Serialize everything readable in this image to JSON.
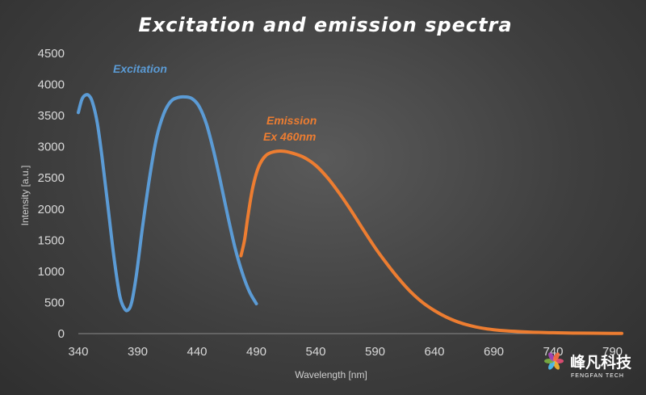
{
  "chart_data": {
    "type": "line",
    "title": "Excitation and emission spectra",
    "xlabel": "Wavelength [nm]",
    "ylabel": "Intensity [a.u.]",
    "xlim": [
      340,
      805
    ],
    "ylim": [
      0,
      4500
    ],
    "xticks": [
      340,
      390,
      440,
      490,
      540,
      590,
      640,
      690,
      740,
      790
    ],
    "yticks": [
      0,
      500,
      1000,
      1500,
      2000,
      2500,
      3000,
      3500,
      4000,
      4500
    ],
    "grid": false,
    "series": [
      {
        "name": "Excitation",
        "color": "#5b9bd5",
        "x": [
          340,
          343,
          346,
          349,
          352,
          356,
          360,
          365,
          370,
          375,
          379,
          382,
          385,
          389,
          394,
          400,
          406,
          412,
          418,
          424,
          430,
          436,
          442,
          448,
          454,
          460,
          466,
          472,
          478,
          484,
          490
        ],
        "y": [
          3550,
          3760,
          3830,
          3820,
          3710,
          3380,
          2830,
          2030,
          1230,
          600,
          400,
          380,
          510,
          950,
          1700,
          2500,
          3150,
          3530,
          3730,
          3790,
          3800,
          3770,
          3640,
          3360,
          2930,
          2420,
          1880,
          1380,
          980,
          680,
          480
        ]
      },
      {
        "name": "Emission",
        "color": "#ed7d31",
        "x": [
          477,
          480,
          483,
          487,
          492,
          498,
          505,
          512,
          520,
          530,
          540,
          550,
          560,
          570,
          580,
          590,
          600,
          610,
          620,
          630,
          640,
          650,
          660,
          670,
          680,
          690,
          700,
          720,
          740,
          760,
          790,
          805
        ],
        "y": [
          1250,
          1500,
          1900,
          2350,
          2680,
          2860,
          2920,
          2930,
          2900,
          2830,
          2700,
          2500,
          2250,
          1970,
          1670,
          1380,
          1120,
          880,
          670,
          500,
          370,
          265,
          185,
          128,
          88,
          62,
          45,
          25,
          14,
          8,
          4,
          3
        ]
      }
    ],
    "annotations": [
      {
        "text": "Excitation",
        "color": "#5b9bd5"
      },
      {
        "text": "Emission",
        "color": "#ed7d31"
      },
      {
        "text": "Ex 460nm",
        "color": "#ed7d31"
      }
    ]
  },
  "watermark": {
    "brand": "峰凡科技",
    "sub": "FENGFAN TECH",
    "colors": [
      "#e94e77",
      "#f7b733",
      "#4fc3f7",
      "#7cb342",
      "#ab47bc",
      "#ff7043"
    ]
  }
}
